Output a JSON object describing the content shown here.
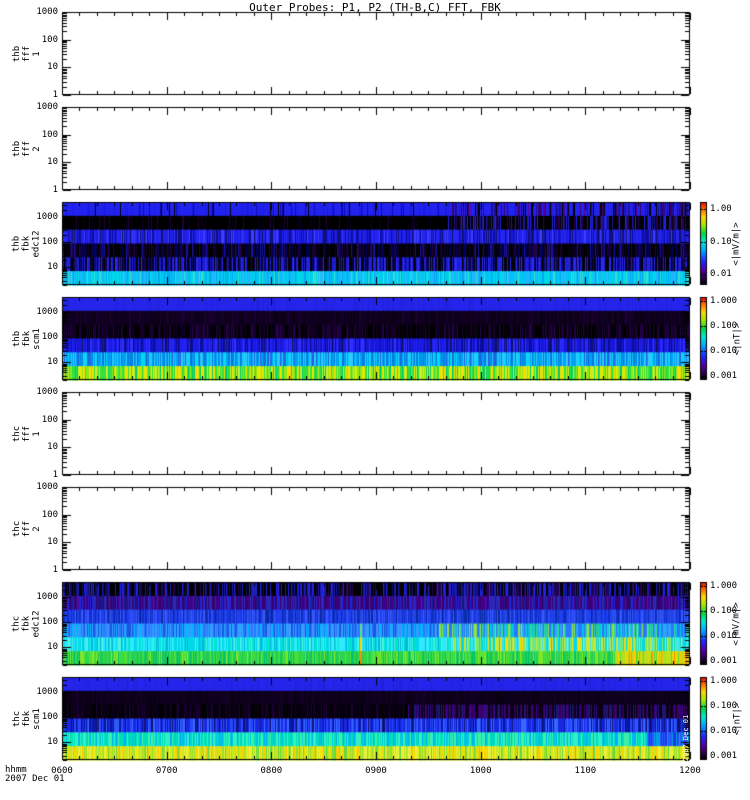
{
  "title": "Outer Probes: P1, P2 (TH-B,C) FFT, FBK",
  "xaxis": {
    "label_left": "hhmm",
    "date": "2007 Dec 01",
    "ticks": [
      "0600",
      "0700",
      "0800",
      "0900",
      "1000",
      "1100",
      "1200"
    ]
  },
  "timestamp_vertical": "2007 Dec 01",
  "colors": {
    "background": "#ffffff",
    "frame": "#000000",
    "rainbow": [
      [
        0,
        "#000000"
      ],
      [
        0.08,
        "#2a0045"
      ],
      [
        0.18,
        "#5500aa"
      ],
      [
        0.28,
        "#2222ff"
      ],
      [
        0.42,
        "#00aaff"
      ],
      [
        0.52,
        "#00e8d0"
      ],
      [
        0.62,
        "#00d840"
      ],
      [
        0.72,
        "#a0e800"
      ],
      [
        0.82,
        "#ffd800"
      ],
      [
        0.9,
        "#ff7800"
      ],
      [
        1,
        "#e80000"
      ]
    ]
  },
  "panels": [
    {
      "id": "thb-fff-1",
      "label_lines": [
        "thb",
        "fff",
        "1"
      ],
      "type": "empty",
      "yticks": [
        "1000",
        "100",
        "10",
        "1"
      ]
    },
    {
      "id": "thb-fff-2",
      "label_lines": [
        "thb",
        "fff",
        "2"
      ],
      "type": "empty",
      "yticks": [
        "1000",
        "100",
        "10",
        "1"
      ]
    },
    {
      "id": "thb-fbk-edc12",
      "label_lines": [
        "thb",
        "fbk",
        "edc12"
      ],
      "type": "spectrogram",
      "yticks": [
        "1000",
        "100",
        "10"
      ],
      "colorbar": {
        "ticks": [
          "1.00",
          "0.10",
          "0.01"
        ],
        "unit": "<|mV/m|>"
      },
      "seed": 11,
      "bands": [
        {
          "palette": [
            "#2222f0",
            "#1a1ae0",
            "#0a0abf",
            "#000000"
          ],
          "weights": [
            0.72,
            0.15,
            0.08,
            0.05
          ],
          "right": {
            "from": 0.62,
            "palette": [
              "#2222f0",
              "#14149a",
              "#3a0070",
              "#000000",
              "#5c00a0"
            ],
            "weights": [
              0.45,
              0.15,
              0.15,
              0.15,
              0.1
            ]
          }
        },
        {
          "palette": [
            "#000000",
            "#0d0020",
            "#20003a"
          ],
          "weights": [
            0.88,
            0.07,
            0.05
          ],
          "right": {
            "from": 0.6,
            "palette": [
              "#000000",
              "#2a0050",
              "#1a1a90",
              "#2222e0"
            ],
            "weights": [
              0.55,
              0.2,
              0.15,
              0.1
            ]
          }
        },
        {
          "palette": [
            "#2525f5",
            "#1c1cd8",
            "#0d0da8",
            "#12126a",
            "#3d3dff"
          ],
          "weights": [
            0.35,
            0.25,
            0.18,
            0.12,
            0.1
          ]
        },
        {
          "palette": [
            "#000000",
            "#10002a",
            "#00005e",
            "#240048",
            "#1212a0"
          ],
          "weights": [
            0.42,
            0.2,
            0.16,
            0.12,
            0.1
          ]
        },
        {
          "palette": [
            "#000000",
            "#1d1dd0",
            "#2a2af5",
            "#10003a",
            "#0a0a80"
          ],
          "weights": [
            0.3,
            0.25,
            0.2,
            0.13,
            0.12
          ]
        },
        {
          "palette": [
            "#00c4f5",
            "#00d8e8",
            "#28b4ff",
            "#00a8f0",
            "#30e0d0"
          ],
          "weights": [
            0.3,
            0.25,
            0.2,
            0.15,
            0.1
          ]
        }
      ]
    },
    {
      "id": "thb-fbk-scm1",
      "label_lines": [
        "thb",
        "fbk",
        "scm1"
      ],
      "type": "spectrogram",
      "yticks": [
        "1000",
        "100",
        "10"
      ],
      "colorbar": {
        "ticks": [
          "1.000",
          "0.100",
          "0.010",
          "0.001"
        ],
        "unit": "<|nT|>"
      },
      "seed": 22,
      "bands": [
        {
          "palette": [
            "#2424ea",
            "#2020dd"
          ],
          "weights": [
            0.85,
            0.15
          ]
        },
        {
          "palette": [
            "#0e001c",
            "#150028",
            "#0a0014",
            "#1c0034"
          ],
          "weights": [
            0.4,
            0.3,
            0.2,
            0.1
          ]
        },
        {
          "palette": [
            "#000000",
            "#16002a",
            "#26004a",
            "#0a0016"
          ],
          "weights": [
            0.45,
            0.25,
            0.18,
            0.12
          ]
        },
        {
          "palette": [
            "#1818d8",
            "#2222f5",
            "#0c0c9a",
            "#3030ff",
            "#101060"
          ],
          "weights": [
            0.3,
            0.25,
            0.2,
            0.15,
            0.1
          ]
        },
        {
          "palette": [
            "#00a0f5",
            "#30c8ff",
            "#0080e0",
            "#00d8f0",
            "#2060e0"
          ],
          "weights": [
            0.3,
            0.25,
            0.2,
            0.15,
            0.1
          ]
        },
        {
          "palette": [
            "#30e040",
            "#90e818",
            "#e8e800",
            "#00cc70",
            "#c8f030",
            "#ffd800"
          ],
          "weights": [
            0.25,
            0.2,
            0.18,
            0.15,
            0.12,
            0.1
          ]
        }
      ]
    },
    {
      "id": "thc-fff-1",
      "label_lines": [
        "thc",
        "fff",
        "1"
      ],
      "type": "empty",
      "yticks": [
        "1000",
        "100",
        "10",
        "1"
      ]
    },
    {
      "id": "thc-fff-2",
      "label_lines": [
        "thc",
        "fff",
        "2"
      ],
      "type": "empty",
      "yticks": [
        "1000",
        "100",
        "10",
        "1"
      ]
    },
    {
      "id": "thc-fbk-edc12",
      "label_lines": [
        "thc",
        "fbk",
        "edc12"
      ],
      "type": "spectrogram",
      "yticks": [
        "1000",
        "100",
        "10"
      ],
      "colorbar": {
        "ticks": [
          "1.000",
          "0.100",
          "0.010",
          "0.001"
        ],
        "unit": "<|mV/m|>"
      },
      "seed": 33,
      "bands": [
        {
          "palette": [
            "#000000",
            "#1a1ab0",
            "#2222e0",
            "#0d0d60",
            "#28004a"
          ],
          "weights": [
            0.5,
            0.15,
            0.13,
            0.12,
            0.1
          ],
          "right": {
            "from": 0.62,
            "palette": [
              "#000000",
              "#1a1ab0",
              "#2222e0",
              "#0d0d60",
              "#28004a"
            ],
            "weights": [
              0.3,
              0.22,
              0.2,
              0.15,
              0.13
            ]
          }
        },
        {
          "palette": [
            "#38006e",
            "#2a2ab0",
            "#44008c",
            "#1a1a8a",
            "#2222d8"
          ],
          "weights": [
            0.3,
            0.22,
            0.2,
            0.15,
            0.13
          ]
        },
        {
          "palette": [
            "#2040f0",
            "#1030c8",
            "#3858ff",
            "#0828a0",
            "#2448e0"
          ],
          "weights": [
            0.3,
            0.25,
            0.2,
            0.12,
            0.13
          ]
        },
        {
          "palette": [
            "#2878ff",
            "#30a0ff",
            "#1858e0",
            "#00b8ff",
            "#4090ff"
          ],
          "weights": [
            0.28,
            0.24,
            0.2,
            0.15,
            0.13
          ],
          "right": {
            "from": 0.6,
            "palette": [
              "#2878ff",
              "#30a0ff",
              "#30d890",
              "#90e040",
              "#00c8e0"
            ],
            "weights": [
              0.3,
              0.2,
              0.2,
              0.15,
              0.15
            ]
          },
          "special": [
            {
              "at": 0.475,
              "color": "#60e080",
              "w": 2
            }
          ]
        },
        {
          "palette": [
            "#00d8e8",
            "#30e8ff",
            "#00b8d8",
            "#50f0e0",
            "#00e8c8"
          ],
          "weights": [
            0.3,
            0.25,
            0.2,
            0.13,
            0.12
          ],
          "right": {
            "from": 0.62,
            "palette": [
              "#00d8e8",
              "#30e8ff",
              "#80e860",
              "#c8e838",
              "#ffd800"
            ],
            "weights": [
              0.3,
              0.2,
              0.2,
              0.17,
              0.13
            ]
          },
          "special": [
            {
              "at": 0.475,
              "color": "#ffd800",
              "w": 2
            }
          ]
        },
        {
          "palette": [
            "#30d848",
            "#50e038",
            "#20c858",
            "#80e828",
            "#00c070"
          ],
          "weights": [
            0.3,
            0.25,
            0.2,
            0.13,
            0.12
          ],
          "right": {
            "from": 0.88,
            "palette": [
              "#b0e020",
              "#e8d800",
              "#ffc800",
              "#50e038",
              "#ff9000"
            ],
            "weights": [
              0.3,
              0.25,
              0.2,
              0.15,
              0.1
            ]
          },
          "special": [
            {
              "at": 0.475,
              "color": "#ff8c00",
              "w": 2
            }
          ]
        }
      ]
    },
    {
      "id": "thc-fbk-scm1",
      "label_lines": [
        "thc",
        "fbk",
        "scm1"
      ],
      "type": "spectrogram",
      "yticks": [
        "1000",
        "100",
        "10"
      ],
      "colorbar": {
        "ticks": [
          "1.000",
          "0.100",
          "0.010",
          "0.001"
        ],
        "unit": "<|nT|>"
      },
      "seed": 44,
      "bands": [
        {
          "palette": [
            "#2424ea",
            "#2020dd"
          ],
          "weights": [
            0.85,
            0.15
          ]
        },
        {
          "palette": [
            "#0e001c",
            "#130024",
            "#090012"
          ],
          "weights": [
            0.5,
            0.3,
            0.2
          ]
        },
        {
          "palette": [
            "#0a0014",
            "#000000",
            "#1e0038"
          ],
          "weights": [
            0.5,
            0.3,
            0.2
          ],
          "right": {
            "from": 0.55,
            "palette": [
              "#0a0014",
              "#30005c",
              "#44008a",
              "#1a1a70"
            ],
            "weights": [
              0.4,
              0.25,
              0.2,
              0.15
            ]
          }
        },
        {
          "palette": [
            "#1828e0",
            "#2848ff",
            "#0818a8",
            "#3868ff",
            "#101070"
          ],
          "weights": [
            0.3,
            0.25,
            0.18,
            0.15,
            0.12
          ]
        },
        {
          "palette": [
            "#00e0b8",
            "#30f0c8",
            "#00c8e0",
            "#40f0a0",
            "#00b0f0"
          ],
          "weights": [
            0.28,
            0.22,
            0.2,
            0.15,
            0.15
          ],
          "right": {
            "from": 0.93,
            "palette": [
              "#1838e0",
              "#2858ff",
              "#00a0e0"
            ],
            "weights": [
              0.4,
              0.35,
              0.25
            ]
          }
        },
        {
          "palette": [
            "#c8e820",
            "#e8f040",
            "#90e030",
            "#f0e000",
            "#ffcc00",
            "#60d840"
          ],
          "weights": [
            0.25,
            0.2,
            0.18,
            0.15,
            0.12,
            0.1
          ]
        }
      ]
    }
  ],
  "chart_data": [
    {
      "type": "heatmap",
      "title": "thb fff 1",
      "x_range": [
        "0600",
        "1200"
      ],
      "y_scale": "log",
      "y_range": [
        1,
        1000
      ],
      "data": "empty (no data plotted)"
    },
    {
      "type": "heatmap",
      "title": "thb fff 2",
      "x_range": [
        "0600",
        "1200"
      ],
      "y_scale": "log",
      "y_range": [
        1,
        1000
      ],
      "data": "empty (no data plotted)"
    },
    {
      "type": "heatmap",
      "title": "thb fbk edc12",
      "x_range": [
        "0600",
        "1200"
      ],
      "y_scale": "log",
      "y_range": [
        2,
        4096
      ],
      "bands_hz": [
        2048,
        512,
        128,
        32,
        8,
        2
      ],
      "z_units": "<|mV/m|>",
      "z_ticks": [
        1.0,
        0.1,
        0.01
      ],
      "approx_band_means_top_to_bottom": [
        0.02,
        0.003,
        0.02,
        0.004,
        0.006,
        0.06
      ],
      "notes": "top band solid blue; increased dark/purple streaking after ~0945; bottom band bright cyan"
    },
    {
      "type": "heatmap",
      "title": "thb fbk scm1",
      "x_range": [
        "0600",
        "1200"
      ],
      "y_scale": "log",
      "y_range": [
        2,
        4096
      ],
      "bands_hz": [
        2048,
        512,
        128,
        32,
        8,
        2
      ],
      "z_units": "<|nT|>",
      "z_ticks": [
        1.0,
        0.1,
        0.01,
        0.001
      ],
      "approx_band_means_top_to_bottom": [
        0.02,
        0.0015,
        0.002,
        0.015,
        0.05,
        0.2
      ],
      "notes": "uniform blue top band; very dark mid bands; bright green/yellow bottom band"
    },
    {
      "type": "heatmap",
      "title": "thc fff 1",
      "x_range": [
        "0600",
        "1200"
      ],
      "y_scale": "log",
      "y_range": [
        1,
        1000
      ],
      "data": "empty (no data plotted)"
    },
    {
      "type": "heatmap",
      "title": "thc fff 2",
      "x_range": [
        "0600",
        "1200"
      ],
      "y_scale": "log",
      "y_range": [
        1,
        1000
      ],
      "data": "empty (no data plotted)"
    },
    {
      "type": "heatmap",
      "title": "thc fbk edc12",
      "x_range": [
        "0600",
        "1200"
      ],
      "y_scale": "log",
      "y_range": [
        2,
        4096
      ],
      "bands_hz": [
        2048,
        512,
        128,
        32,
        8,
        2
      ],
      "z_units": "<|mV/m|>",
      "z_ticks": [
        1.0,
        0.1,
        0.01,
        0.001
      ],
      "approx_band_means_top_to_bottom": [
        0.004,
        0.008,
        0.03,
        0.06,
        0.12,
        0.25
      ],
      "notes": "intensity rises toward lower bands; orange enhancement near ~0900 and strong yellow after ~1130"
    },
    {
      "type": "heatmap",
      "title": "thc fbk scm1",
      "x_range": [
        "0600",
        "1200"
      ],
      "y_scale": "log",
      "y_range": [
        2,
        4096
      ],
      "bands_hz": [
        2048,
        512,
        128,
        32,
        8,
        2
      ],
      "z_units": "<|nT|>",
      "z_ticks": [
        1.0,
        0.1,
        0.01,
        0.001
      ],
      "approx_band_means_top_to_bottom": [
        0.02,
        0.0015,
        0.003,
        0.02,
        0.1,
        0.4
      ],
      "notes": "uniform blue top band; bright yellow-green bottom band; cyan band dims to blue after ~1145"
    }
  ]
}
